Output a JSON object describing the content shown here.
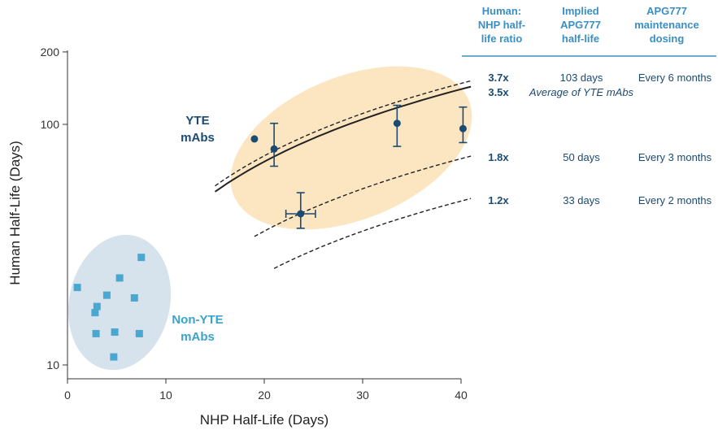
{
  "chart_data": {
    "type": "scatter",
    "xlabel": "NHP Half-Life (Days)",
    "ylabel": "Human Half-Life (Days)",
    "xlim": [
      0,
      40
    ],
    "ylim": [
      9.5,
      200
    ],
    "y_scale": "log",
    "x_ticks": [
      "0",
      "10",
      "20",
      "30",
      "40"
    ],
    "y_ticks": [
      {
        "value": 10,
        "label": "10"
      },
      {
        "value": 100,
        "label": "100"
      },
      {
        "value": 200,
        "label": "200"
      }
    ],
    "series": [
      {
        "name": "YTE mAbs",
        "color": "#1b4a73",
        "marker": "circle",
        "points": [
          {
            "x": 19.0,
            "y": 87
          },
          {
            "x": 21.0,
            "y": 79,
            "ylo": 67,
            "yhi": 101
          },
          {
            "x": 23.7,
            "y": 42.5,
            "ylo": 37,
            "yhi": 52,
            "xlo": 22.2,
            "xhi": 25.2
          },
          {
            "x": 33.5,
            "y": 101,
            "ylo": 81,
            "yhi": 120
          },
          {
            "x": 40.2,
            "y": 96,
            "ylo": 84,
            "yhi": 118
          }
        ]
      },
      {
        "name": "Non-YTE mAbs",
        "color": "#4aa8d0",
        "marker": "square",
        "points": [
          {
            "x": 1.0,
            "y": 21
          },
          {
            "x": 3.0,
            "y": 17.5
          },
          {
            "x": 2.8,
            "y": 16.5
          },
          {
            "x": 2.9,
            "y": 13.5
          },
          {
            "x": 4.0,
            "y": 19.5
          },
          {
            "x": 5.3,
            "y": 23
          },
          {
            "x": 4.8,
            "y": 13.7
          },
          {
            "x": 4.7,
            "y": 10.8
          },
          {
            "x": 6.8,
            "y": 19
          },
          {
            "x": 7.5,
            "y": 28
          },
          {
            "x": 7.3,
            "y": 13.5
          }
        ]
      }
    ],
    "curves": [
      {
        "ratio": 3.7,
        "style": "dashed",
        "x_range": [
          15,
          41
        ]
      },
      {
        "ratio": 3.5,
        "style": "solid",
        "x_range": [
          15,
          41
        ]
      },
      {
        "ratio": 1.8,
        "style": "dashed",
        "x_range": [
          19,
          41
        ]
      },
      {
        "ratio": 1.2,
        "style": "dashed",
        "x_range": [
          21,
          41
        ]
      }
    ],
    "group_labels": {
      "yte": [
        "YTE",
        "mAbs"
      ],
      "non_yte": [
        "Non-YTE",
        "mAbs"
      ]
    },
    "grid": false
  },
  "table": {
    "headers": [
      [
        "Human:",
        "NHP half-",
        "life ratio"
      ],
      [
        "Implied",
        "APG777",
        "half-life"
      ],
      [
        "APG777",
        "maintenance",
        "dosing"
      ]
    ],
    "rows": [
      {
        "ratio": "3.7x",
        "half_life": "103 days",
        "dosing": "Every 6 months"
      },
      {
        "ratio": "3.5x",
        "note": "Average of YTE mAbs"
      },
      {
        "ratio": "1.8x",
        "half_life": "50 days",
        "dosing": "Every 3 months"
      },
      {
        "ratio": "1.2x",
        "half_life": "33 days",
        "dosing": "Every 2 months"
      }
    ],
    "header_color": "#3a8fc4",
    "text_color": "#1b4a73"
  },
  "ellipse_colors": {
    "yte": "#fce6c2",
    "non_yte": "#d6e3ec"
  }
}
